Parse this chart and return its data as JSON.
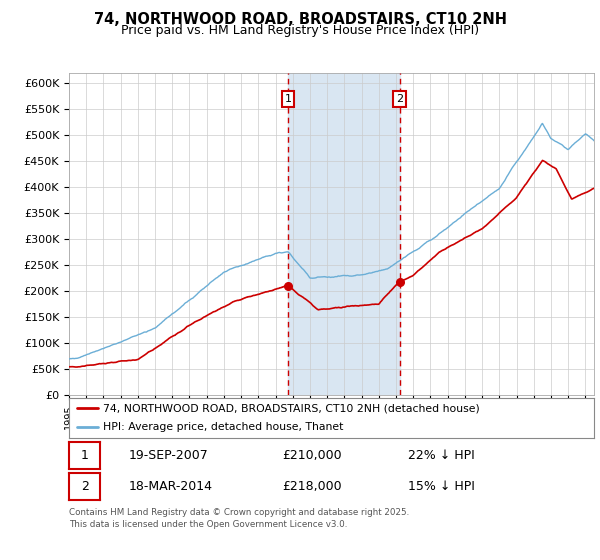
{
  "title": "74, NORTHWOOD ROAD, BROADSTAIRS, CT10 2NH",
  "subtitle": "Price paid vs. HM Land Registry's House Price Index (HPI)",
  "ylim": [
    0,
    620000
  ],
  "yticks": [
    0,
    50000,
    100000,
    150000,
    200000,
    250000,
    300000,
    350000,
    400000,
    450000,
    500000,
    550000,
    600000
  ],
  "background_color": "#ffffff",
  "grid_color": "#cccccc",
  "hpi_color": "#6baed6",
  "price_color": "#cc0000",
  "sale1_x": 2007.72,
  "sale1_y": 210000,
  "sale1_label": "1",
  "sale2_x": 2014.21,
  "sale2_y": 218000,
  "sale2_label": "2",
  "shade_color": "#d9e6f2",
  "vline_color": "#cc0000",
  "legend_line1": "74, NORTHWOOD ROAD, BROADSTAIRS, CT10 2NH (detached house)",
  "legend_line2": "HPI: Average price, detached house, Thanet",
  "table_row1_num": "1",
  "table_row1_date": "19-SEP-2007",
  "table_row1_price": "£210,000",
  "table_row1_hpi": "22% ↓ HPI",
  "table_row2_num": "2",
  "table_row2_date": "18-MAR-2014",
  "table_row2_price": "£218,000",
  "table_row2_hpi": "15% ↓ HPI",
  "footer": "Contains HM Land Registry data © Crown copyright and database right 2025.\nThis data is licensed under the Open Government Licence v3.0.",
  "xmin": 1995,
  "xmax": 2025.5
}
